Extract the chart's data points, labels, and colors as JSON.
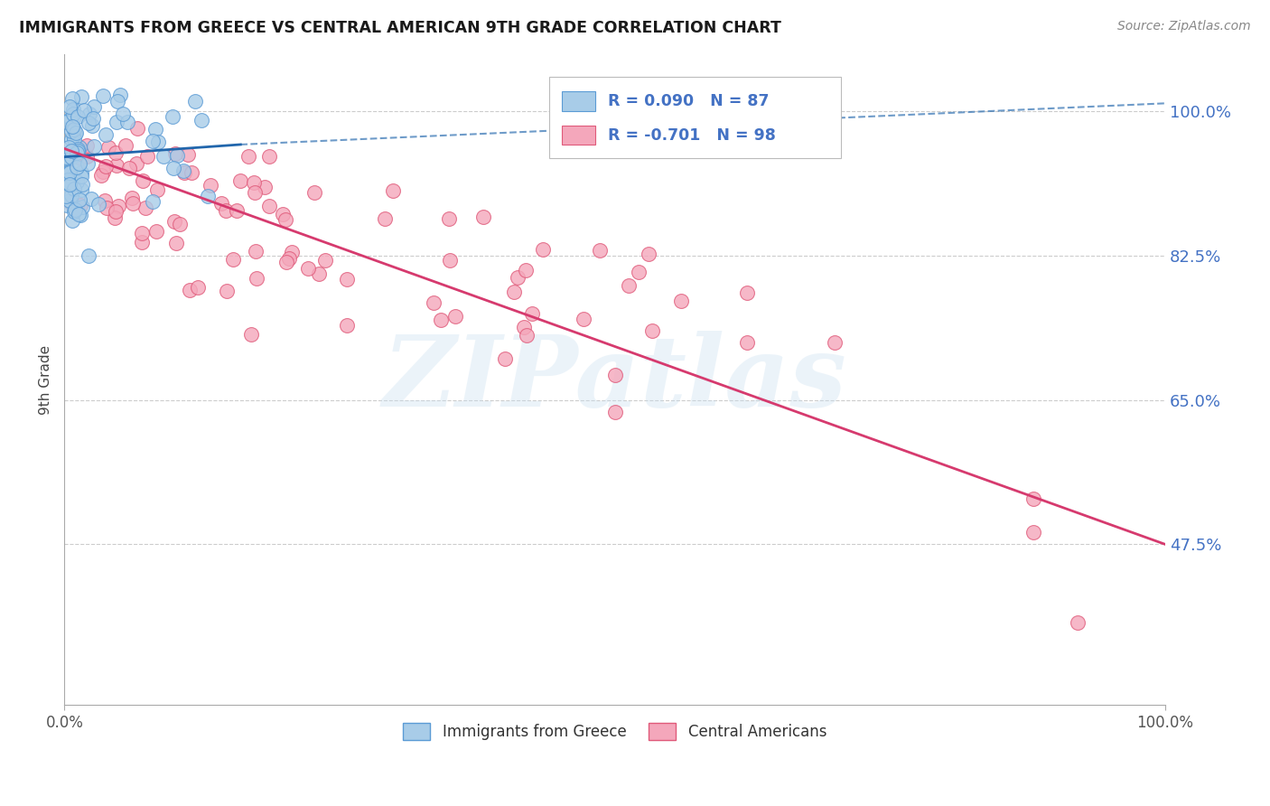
{
  "title": "IMMIGRANTS FROM GREECE VS CENTRAL AMERICAN 9TH GRADE CORRELATION CHART",
  "source": "Source: ZipAtlas.com",
  "ylabel": "9th Grade",
  "ytick_values": [
    1.0,
    0.825,
    0.65,
    0.475
  ],
  "ytick_labels": [
    "100.0%",
    "82.5%",
    "65.0%",
    "47.5%"
  ],
  "xlim": [
    0.0,
    1.0
  ],
  "ylim": [
    0.28,
    1.07
  ],
  "greece_color": "#a8cce8",
  "greece_edge_color": "#5b9bd5",
  "central_color": "#f4a7bb",
  "central_edge_color": "#e05a7a",
  "greece_R": 0.09,
  "greece_N": 87,
  "central_R": -0.701,
  "central_N": 98,
  "trend_blue_color": "#2166ac",
  "trend_pink_color": "#d63a6e",
  "watermark": "ZIPatlas",
  "greece_line_solid_end": 0.16,
  "greece_line_start_y": 0.945,
  "greece_line_end_y_solid": 0.96,
  "greece_line_end_y_dashed": 1.01,
  "central_line_x0": 0.0,
  "central_line_y0": 0.955,
  "central_line_x1": 1.0,
  "central_line_y1": 0.475
}
